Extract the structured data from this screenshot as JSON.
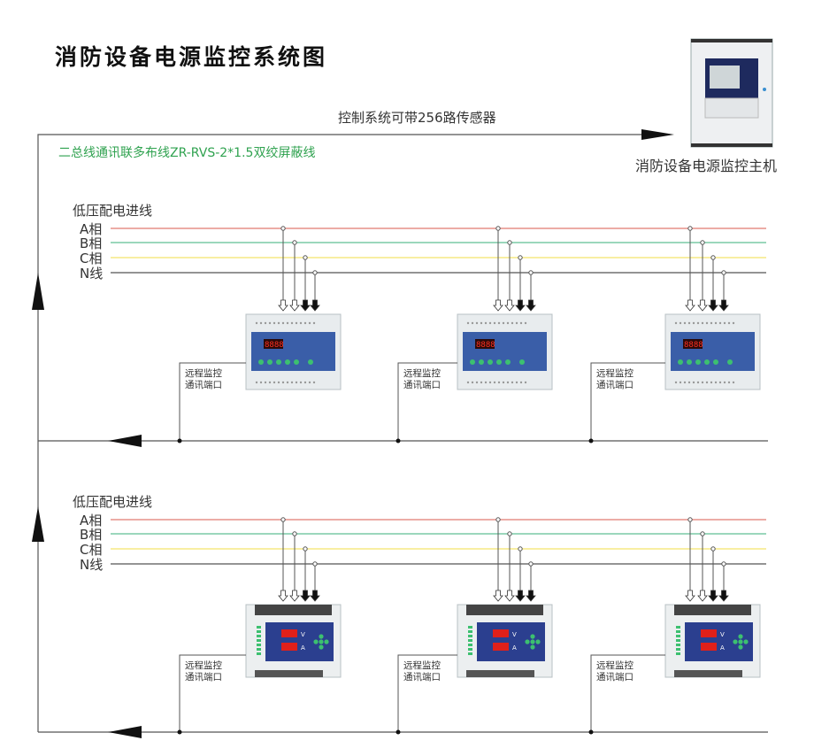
{
  "title": "消防设备电源监控系统图",
  "top_bus_label": "控制系统可带256路传感器",
  "cable_label": "二总线通讯联多布线ZR-RVS-2*1.5双绞屏蔽线",
  "host": {
    "label": "消防设备电源监控主机"
  },
  "groups": [
    {
      "heading": "低压配电进线",
      "phases": [
        {
          "label": "A相",
          "color": "#e07a72"
        },
        {
          "label": "B相",
          "color": "#5fbf94"
        },
        {
          "label": "C相",
          "color": "#f3e46a"
        },
        {
          "label": "N线",
          "color": "#555555"
        }
      ],
      "device_type": "rail-mount",
      "devices": [
        {
          "port_line1": "远程监控",
          "port_line2": "通讯端口",
          "display": "8888"
        },
        {
          "port_line1": "远程监控",
          "port_line2": "通讯端口",
          "display": "8888"
        },
        {
          "port_line1": "远程监控",
          "port_line2": "通讯端口",
          "display": "8888"
        }
      ]
    },
    {
      "heading": "低压配电进线",
      "phases": [
        {
          "label": "A相",
          "color": "#e07a72"
        },
        {
          "label": "B相",
          "color": "#5fbf94"
        },
        {
          "label": "C相",
          "color": "#f3e46a"
        },
        {
          "label": "N线",
          "color": "#555555"
        }
      ],
      "device_type": "panel",
      "devices": [
        {
          "port_line1": "远程监控",
          "port_line2": "通讯端口",
          "v_label": "V",
          "a_label": "A"
        },
        {
          "port_line1": "远程监控",
          "port_line2": "通讯端口",
          "v_label": "V",
          "a_label": "A"
        },
        {
          "port_line1": "远程监控",
          "port_line2": "通讯端口",
          "v_label": "V",
          "a_label": "A"
        }
      ]
    }
  ],
  "colors": {
    "line": "#555555",
    "cable_text": "#2fa24f",
    "panel": "#2b3f8f",
    "led": "#e0201a"
  }
}
